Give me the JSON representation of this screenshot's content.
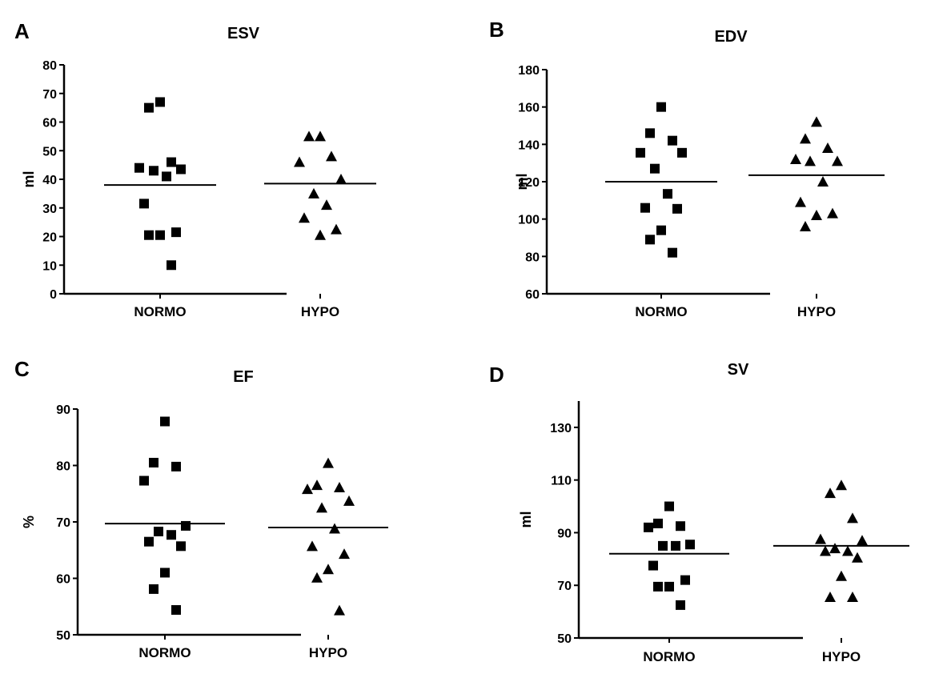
{
  "chart_data": [
    {
      "type": "scatter",
      "panel": "A",
      "title": "ESV",
      "xlabel": "",
      "ylabel": "ml",
      "ylim": [
        0,
        80
      ],
      "yticks": [
        0,
        10,
        20,
        30,
        40,
        50,
        60,
        70,
        80
      ],
      "categories": [
        "NORMO",
        "HYPO"
      ],
      "series": [
        {
          "name": "NORMO",
          "marker": "square",
          "mean": 38,
          "values": [
            67,
            65,
            46,
            44,
            43.5,
            43,
            41,
            31.5,
            21.5,
            20.5,
            20.5,
            10
          ]
        },
        {
          "name": "HYPO",
          "marker": "triangle",
          "mean": 38.5,
          "values": [
            55,
            55,
            48,
            46,
            40,
            35,
            31,
            26.5,
            22.5,
            20.5
          ]
        }
      ]
    },
    {
      "type": "scatter",
      "panel": "B",
      "title": "EDV",
      "xlabel": "",
      "ylabel": "ml",
      "ylim": [
        60,
        180
      ],
      "yticks": [
        60,
        80,
        100,
        120,
        140,
        160,
        180
      ],
      "categories": [
        "NORMO",
        "HYPO"
      ],
      "series": [
        {
          "name": "NORMO",
          "marker": "square",
          "mean": 120,
          "values": [
            160,
            146,
            142,
            135.5,
            135.5,
            127,
            113.5,
            106,
            105.5,
            94,
            89,
            82
          ]
        },
        {
          "name": "HYPO",
          "marker": "triangle",
          "mean": 123.5,
          "values": [
            152,
            143,
            138,
            132,
            131,
            131,
            120,
            109,
            103,
            102,
            96
          ]
        }
      ]
    },
    {
      "type": "scatter",
      "panel": "C",
      "title": "EF",
      "xlabel": "",
      "ylabel": "%",
      "ylim": [
        50,
        90
      ],
      "yticks": [
        50,
        60,
        70,
        80,
        90
      ],
      "categories": [
        "NORMO",
        "HYPO"
      ],
      "series": [
        {
          "name": "NORMO",
          "marker": "square",
          "mean": 69.7,
          "values": [
            87.8,
            80.5,
            79.8,
            77.3,
            69.3,
            68.3,
            67.7,
            66.5,
            65.7,
            61,
            58.1,
            54.4
          ]
        },
        {
          "name": "HYPO",
          "marker": "triangle",
          "mean": 69,
          "values": [
            80.4,
            76.5,
            76.1,
            75.8,
            73.7,
            72.5,
            68.8,
            65.7,
            64.3,
            61.6,
            60.1,
            54.3
          ]
        }
      ]
    },
    {
      "type": "scatter",
      "panel": "D",
      "title": "SV",
      "xlabel": "",
      "ylabel": "ml",
      "ylim": [
        50,
        140
      ],
      "yticks": [
        50,
        70,
        90,
        110,
        130
      ],
      "categories": [
        "NORMO",
        "HYPO"
      ],
      "series": [
        {
          "name": "NORMO",
          "marker": "square",
          "mean": 82,
          "values": [
            100,
            93.5,
            92.5,
            92,
            85.5,
            85,
            85,
            77.5,
            72,
            69.5,
            69.5,
            62.5
          ]
        },
        {
          "name": "HYPO",
          "marker": "triangle",
          "mean": 85,
          "values": [
            108,
            105,
            95.5,
            87.5,
            87,
            84,
            83,
            83,
            80.5,
            73.5,
            65.5,
            65.5
          ]
        }
      ]
    }
  ]
}
